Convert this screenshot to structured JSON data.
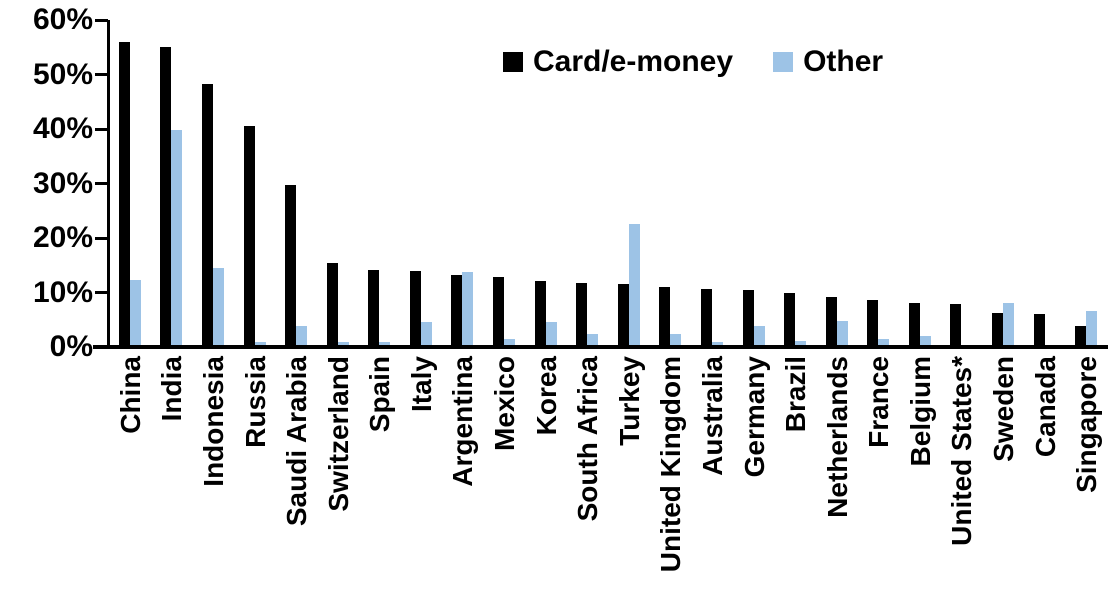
{
  "chart_data": {
    "type": "bar",
    "title": "",
    "xlabel": "",
    "ylabel": "",
    "ylim": [
      0,
      60
    ],
    "ytick_step": 10,
    "ytick_labels": [
      "0%",
      "10%",
      "20%",
      "30%",
      "40%",
      "50%",
      "60%"
    ],
    "grid": false,
    "legend_position": "top-center",
    "categories": [
      "China",
      "India",
      "Indonesia",
      "Russia",
      "Saudi Arabia",
      "Switzerland",
      "Spain",
      "Italy",
      "Argentina",
      "Mexico",
      "Korea",
      "South Africa",
      "Turkey",
      "United Kingdom",
      "Australia",
      "Germany",
      "Brazil",
      "Netherlands",
      "France",
      "Belgium",
      "United States*",
      "Sweden",
      "Canada",
      "Singapore"
    ],
    "series": [
      {
        "name": "Card/e-money",
        "color": "#000000",
        "values": [
          56.0,
          55.0,
          48.2,
          40.5,
          29.8,
          15.5,
          14.2,
          14.0,
          13.3,
          12.9,
          12.2,
          11.7,
          11.6,
          11.0,
          10.7,
          10.5,
          9.9,
          9.2,
          8.6,
          8.1,
          7.9,
          6.2,
          6.0,
          3.9
        ]
      },
      {
        "name": "Other",
        "color": "#9DC3E6",
        "values": [
          12.3,
          39.8,
          14.5,
          1.0,
          3.8,
          0.9,
          1.0,
          4.6,
          13.8,
          1.4,
          4.6,
          2.3,
          22.5,
          2.3,
          0.9,
          3.9,
          1.1,
          4.8,
          1.5,
          2.0,
          0.3,
          8.1,
          0.0,
          6.6
        ]
      }
    ]
  }
}
